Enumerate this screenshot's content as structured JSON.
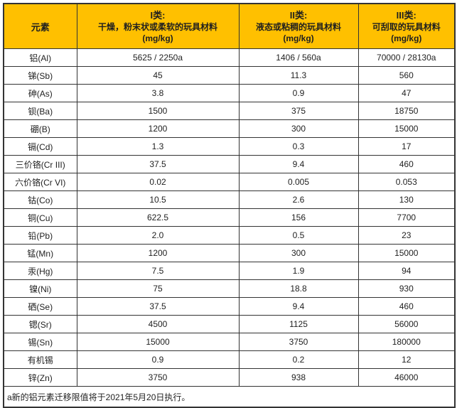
{
  "colors": {
    "header_bg": "#FFC000",
    "border_color": "#333333",
    "text_color": "#1f1f1f",
    "page_bg": "#ffffff"
  },
  "table": {
    "header": {
      "element": "元素",
      "classes": [
        {
          "title": "I类:",
          "desc": "干燥，粉末状或柔软的玩具材料",
          "unit": "(mg/kg)"
        },
        {
          "title": "II类:",
          "desc": "液态或粘稠的玩具材料",
          "unit": "(mg/kg)"
        },
        {
          "title": "III类:",
          "desc": "可刮取的玩具材料",
          "unit": "(mg/kg)"
        }
      ]
    },
    "rows": [
      [
        "铝(Al)",
        "5625 / 2250a",
        "1406 / 560a",
        "70000 / 28130a"
      ],
      [
        "锑(Sb)",
        "45",
        "11.3",
        "560"
      ],
      [
        "砷(As)",
        "3.8",
        "0.9",
        "47"
      ],
      [
        "钡(Ba)",
        "1500",
        "375",
        "18750"
      ],
      [
        "硼(B)",
        "1200",
        "300",
        "15000"
      ],
      [
        "镉(Cd)",
        "1.3",
        "0.3",
        "17"
      ],
      [
        "三价铬(Cr III)",
        "37.5",
        "9.4",
        "460"
      ],
      [
        "六价铬(Cr VI)",
        "0.02",
        "0.005",
        "0.053"
      ],
      [
        "钴(Co)",
        "10.5",
        "2.6",
        "130"
      ],
      [
        "铜(Cu)",
        "622.5",
        "156",
        "7700"
      ],
      [
        "铅(Pb)",
        "2.0",
        "0.5",
        "23"
      ],
      [
        "锰(Mn)",
        "1200",
        "300",
        "15000"
      ],
      [
        "汞(Hg)",
        "7.5",
        "1.9",
        "94"
      ],
      [
        "镍(Ni)",
        "75",
        "18.8",
        "930"
      ],
      [
        "硒(Se)",
        "37.5",
        "9.4",
        "460"
      ],
      [
        "锶(Sr)",
        "4500",
        "1125",
        "56000"
      ],
      [
        "锡(Sn)",
        "15000",
        "3750",
        "180000"
      ],
      [
        "有机锡",
        "0.9",
        "0.2",
        "12"
      ],
      [
        "锌(Zn)",
        "3750",
        "938",
        "46000"
      ]
    ],
    "footnote": "a新的铝元素迁移限值将于2021年5月20日执行。"
  }
}
